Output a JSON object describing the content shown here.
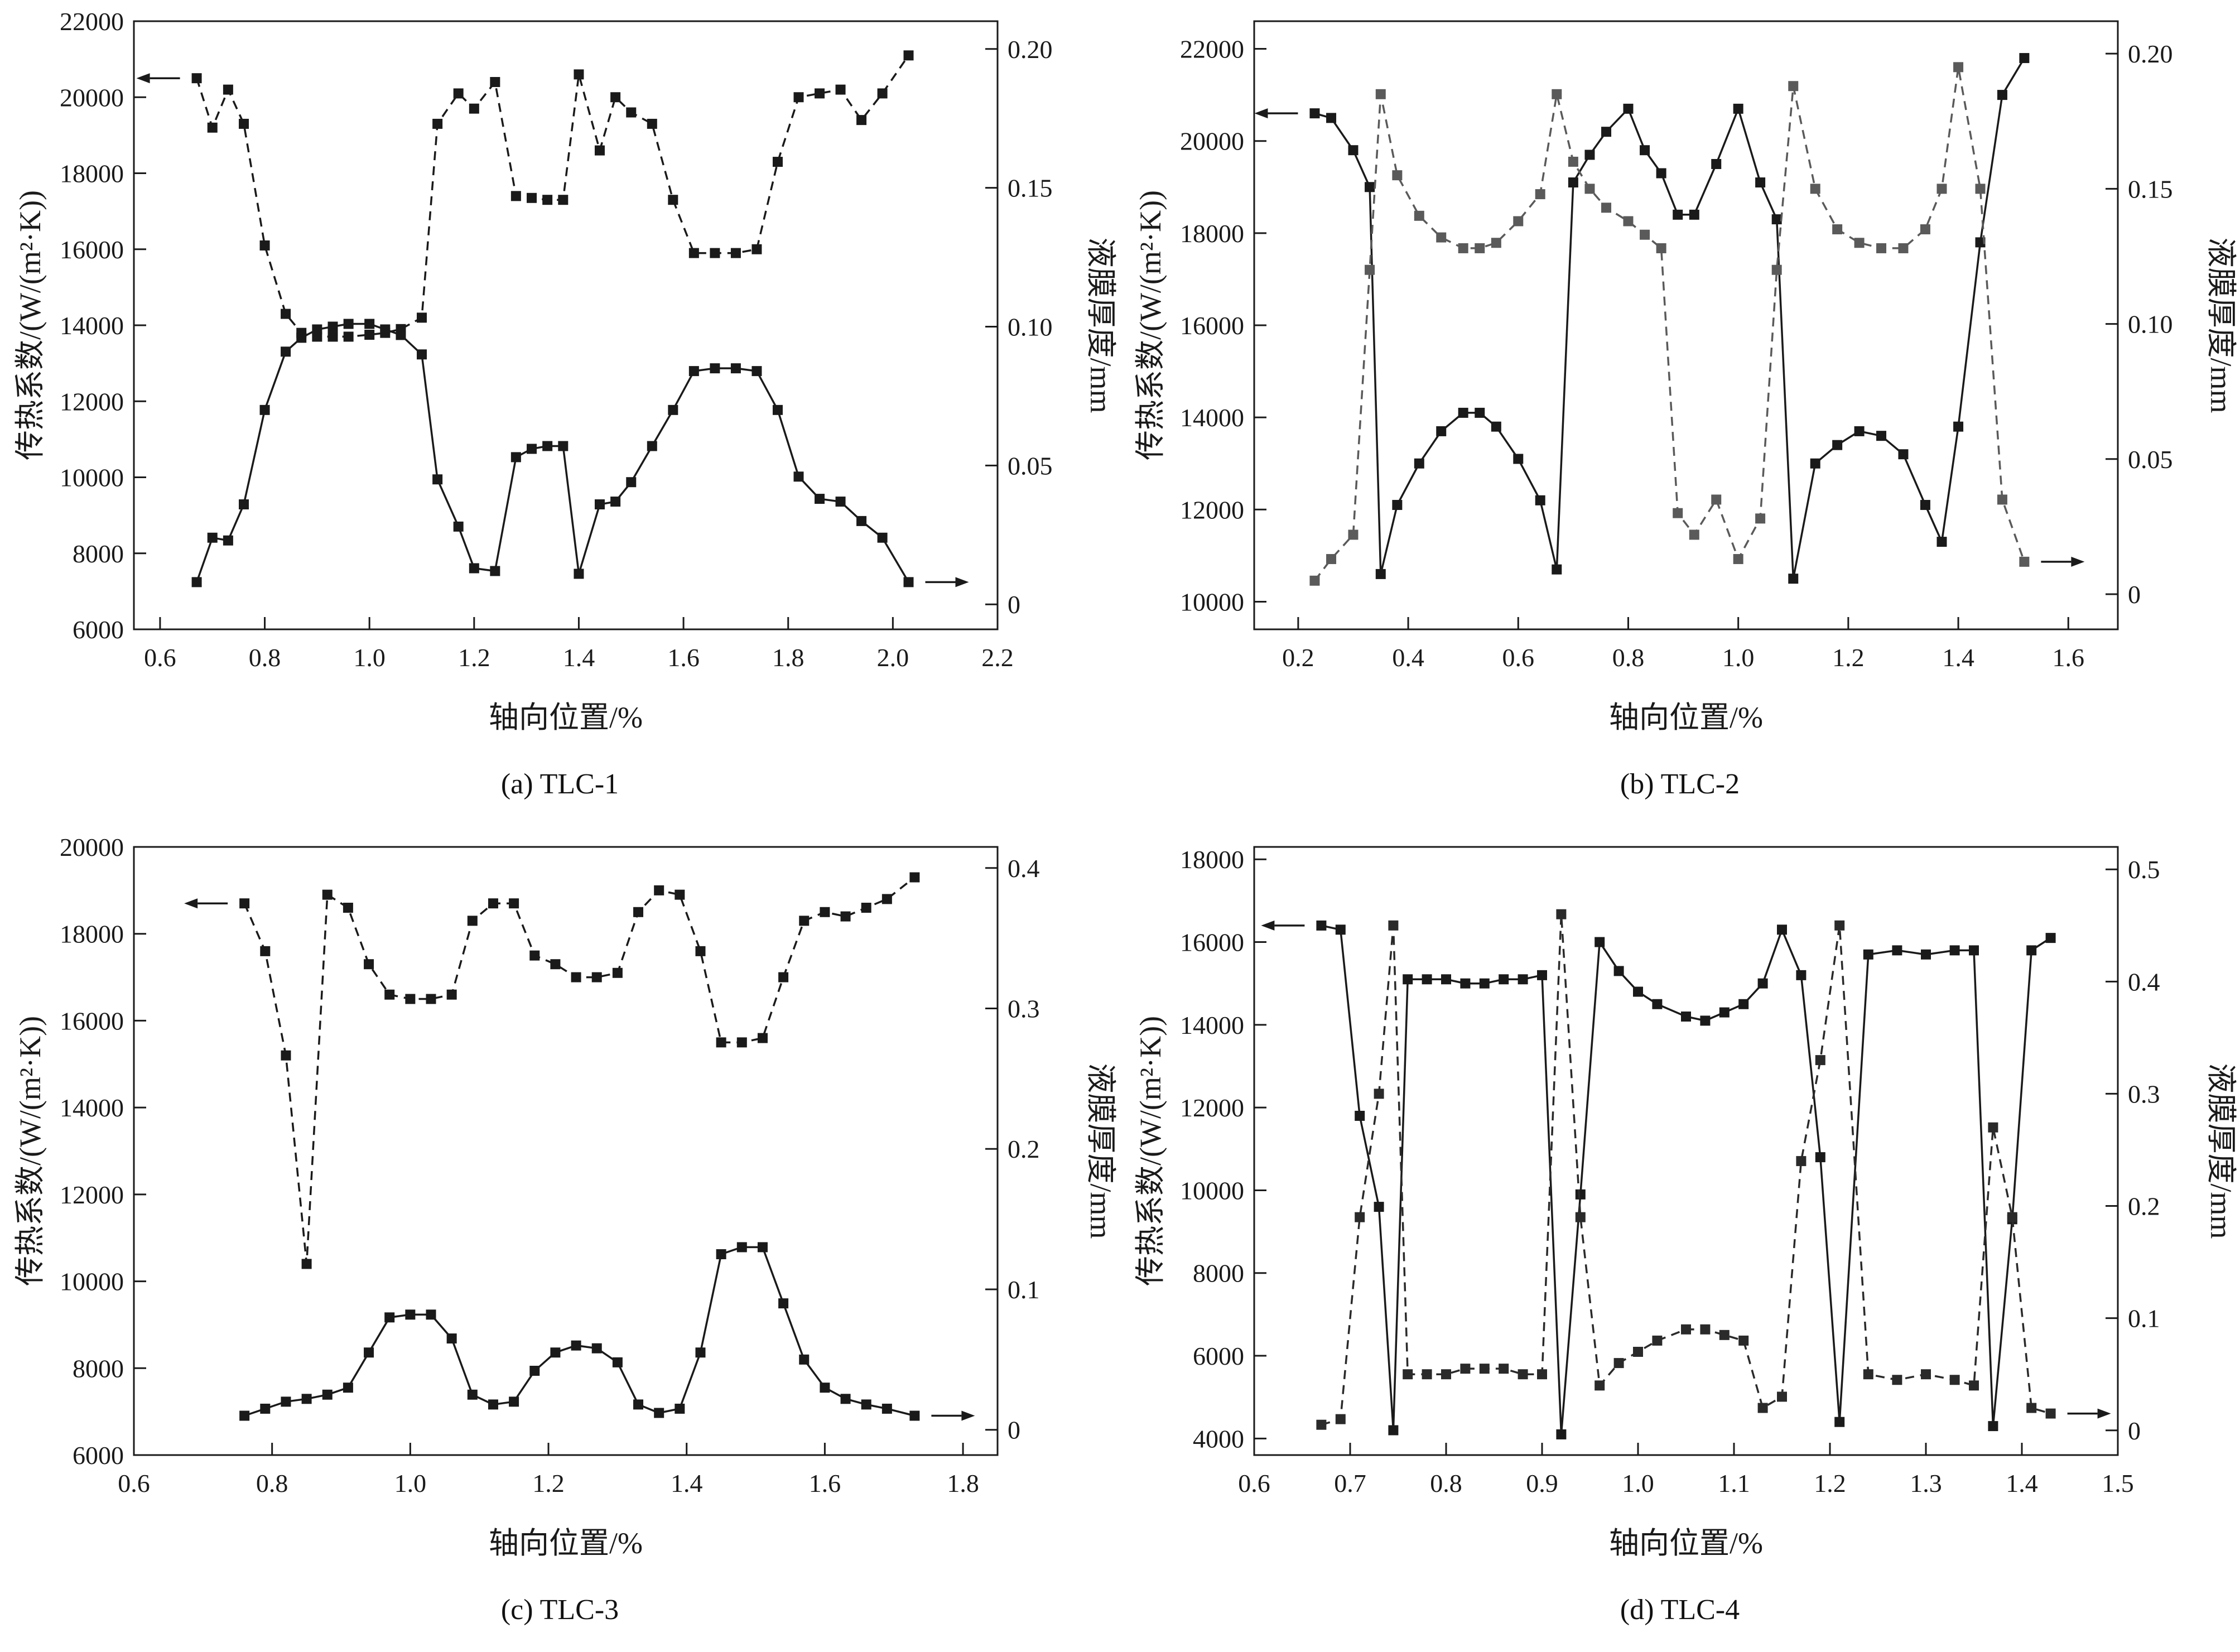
{
  "figure_title": "",
  "accent_color": "#1a1a1a",
  "film_gray_color": "#5a5a5a",
  "chart_data": [
    {
      "id": "a",
      "type": "line",
      "caption": "(a) TLC-1",
      "xlabel": "轴向位置/%",
      "ylabel_left": "传热系数/(W/(m²·K))",
      "ylabel_right": "液膜厚度/mm",
      "xlim": [
        0.55,
        2.2
      ],
      "xticks": [
        0.6,
        0.8,
        1.0,
        1.2,
        1.4,
        1.6,
        1.8,
        2.0,
        2.2
      ],
      "xtick_labels": [
        "0.6",
        "0.8",
        "1.0",
        "1.2",
        "1.4",
        "1.6",
        "1.8",
        "2.0",
        "2.2"
      ],
      "ylim_left": [
        6000,
        22000
      ],
      "yticks_left": [
        6000,
        8000,
        10000,
        12000,
        14000,
        16000,
        18000,
        20000,
        22000
      ],
      "ytick_labels_left": [
        "6000",
        "8000",
        "10000",
        "12000",
        "14000",
        "16000",
        "18000",
        "20000",
        "22000"
      ],
      "ylim_right": [
        -0.009,
        0.21
      ],
      "yticks_right": [
        0,
        0.05,
        0.1,
        0.15,
        0.2
      ],
      "ytick_labels_right": [
        "0",
        "0.05",
        "0.10",
        "0.15",
        "0.20"
      ],
      "x": [
        0.67,
        0.7,
        0.73,
        0.76,
        0.8,
        0.84,
        0.87,
        0.9,
        0.93,
        0.96,
        1.0,
        1.03,
        1.06,
        1.1,
        1.13,
        1.17,
        1.2,
        1.24,
        1.28,
        1.31,
        1.34,
        1.37,
        1.4,
        1.44,
        1.47,
        1.5,
        1.54,
        1.58,
        1.62,
        1.66,
        1.7,
        1.74,
        1.78,
        1.82,
        1.86,
        1.9,
        1.94,
        1.98,
        2.03
      ],
      "series": [
        {
          "key": "htc",
          "name": "传热系数",
          "axis": "left",
          "line": "dashed",
          "color": "#1a1a1a",
          "y": [
            20500,
            19200,
            20200,
            19300,
            16100,
            14300,
            13800,
            13700,
            13700,
            13700,
            13750,
            13800,
            13900,
            14200,
            19300,
            20100,
            19700,
            20400,
            17400,
            17350,
            17300,
            17300,
            20600,
            18600,
            20000,
            19600,
            19300,
            17300,
            15900,
            15900,
            15900,
            16000,
            18300,
            20000,
            20100,
            20200,
            19400,
            20100,
            21100
          ]
        },
        {
          "key": "film",
          "name": "液膜厚度",
          "axis": "right",
          "line": "solid",
          "color": "#1a1a1a",
          "y": [
            0.008,
            0.024,
            0.023,
            0.036,
            0.07,
            0.091,
            0.096,
            0.099,
            0.1,
            0.101,
            0.101,
            0.099,
            0.097,
            0.09,
            0.045,
            0.028,
            0.013,
            0.012,
            0.053,
            0.056,
            0.057,
            0.057,
            0.011,
            0.036,
            0.037,
            0.044,
            0.057,
            0.07,
            0.084,
            0.085,
            0.085,
            0.084,
            0.07,
            0.046,
            0.038,
            0.037,
            0.03,
            0.024,
            0.008
          ]
        }
      ],
      "arrows": [
        {
          "series": 0,
          "point": "first",
          "dir": "left"
        },
        {
          "series": 1,
          "point": "last",
          "dir": "right"
        }
      ]
    },
    {
      "id": "b",
      "type": "line",
      "caption": "(b) TLC-2",
      "xlabel": "轴向位置/%",
      "ylabel_left": "传热系数/(W/(m²·K))",
      "ylabel_right": "液膜厚度/mm",
      "xlim": [
        0.12,
        1.69
      ],
      "xticks": [
        0.2,
        0.4,
        0.6,
        0.8,
        1.0,
        1.2,
        1.4,
        1.6
      ],
      "xtick_labels": [
        "0.2",
        "0.4",
        "0.6",
        "0.8",
        "1.0",
        "1.2",
        "1.4",
        "1.6"
      ],
      "ylim_left": [
        9400,
        22600
      ],
      "yticks_left": [
        10000,
        12000,
        14000,
        16000,
        18000,
        20000,
        22000
      ],
      "ytick_labels_left": [
        "10000",
        "12000",
        "14000",
        "16000",
        "18000",
        "20000",
        "22000"
      ],
      "ylim_right": [
        -0.013,
        0.212
      ],
      "yticks_right": [
        0,
        0.05,
        0.1,
        0.15,
        0.2
      ],
      "ytick_labels_right": [
        "0",
        "0.05",
        "0.10",
        "0.15",
        "0.20"
      ],
      "x": [
        0.23,
        0.26,
        0.3,
        0.33,
        0.35,
        0.38,
        0.42,
        0.46,
        0.5,
        0.53,
        0.56,
        0.6,
        0.64,
        0.67,
        0.7,
        0.73,
        0.76,
        0.8,
        0.83,
        0.86,
        0.89,
        0.92,
        0.96,
        1.0,
        1.04,
        1.07,
        1.1,
        1.14,
        1.18,
        1.22,
        1.26,
        1.3,
        1.34,
        1.37,
        1.4,
        1.44,
        1.48,
        1.52
      ],
      "series": [
        {
          "key": "htc",
          "name": "传热系数",
          "axis": "left",
          "line": "solid",
          "color": "#1a1a1a",
          "y": [
            20600,
            20500,
            19800,
            19000,
            10600,
            12100,
            13000,
            13700,
            14100,
            14100,
            13800,
            13100,
            12200,
            10700,
            19100,
            19700,
            20200,
            20700,
            19800,
            19300,
            18400,
            18400,
            19500,
            20700,
            19100,
            18300,
            10500,
            13000,
            13400,
            13700,
            13600,
            13200,
            12100,
            11300,
            13800,
            17800,
            21000,
            21800
          ]
        },
        {
          "key": "film",
          "name": "液膜厚度",
          "axis": "right",
          "line": "dashed",
          "color": "#5a5a5a",
          "y": [
            0.005,
            0.013,
            0.022,
            0.12,
            0.185,
            0.155,
            0.14,
            0.132,
            0.128,
            0.128,
            0.13,
            0.138,
            0.148,
            0.185,
            0.16,
            0.15,
            0.143,
            0.138,
            0.133,
            0.128,
            0.03,
            0.022,
            0.035,
            0.013,
            0.028,
            0.12,
            0.188,
            0.15,
            0.135,
            0.13,
            0.128,
            0.128,
            0.135,
            0.15,
            0.195,
            0.15,
            0.035,
            0.012
          ]
        }
      ],
      "arrows": [
        {
          "series": 0,
          "point": "first",
          "dir": "left"
        },
        {
          "series": 1,
          "point": "last",
          "dir": "right"
        }
      ]
    },
    {
      "id": "c",
      "type": "line",
      "caption": "(c) TLC-3",
      "xlabel": "轴向位置/%",
      "ylabel_left": "传热系数/(W/(m²·K))",
      "ylabel_right": "液膜厚度/mm",
      "xlim": [
        0.6,
        1.85
      ],
      "xticks": [
        0.6,
        0.8,
        1.0,
        1.2,
        1.4,
        1.6,
        1.8
      ],
      "xtick_labels": [
        "0.6",
        "0.8",
        "1.0",
        "1.2",
        "1.4",
        "1.6",
        "1.8"
      ],
      "ylim_left": [
        6000,
        20000
      ],
      "yticks_left": [
        6000,
        8000,
        10000,
        12000,
        14000,
        16000,
        18000,
        20000
      ],
      "ytick_labels_left": [
        "6000",
        "8000",
        "10000",
        "12000",
        "14000",
        "16000",
        "18000",
        "20000"
      ],
      "ylim_right": [
        -0.018,
        0.415
      ],
      "yticks_right": [
        0,
        0.1,
        0.2,
        0.3,
        0.4
      ],
      "ytick_labels_right": [
        "0",
        "0.1",
        "0.2",
        "0.3",
        "0.4"
      ],
      "x": [
        0.76,
        0.79,
        0.82,
        0.85,
        0.88,
        0.91,
        0.94,
        0.97,
        1.0,
        1.03,
        1.06,
        1.09,
        1.12,
        1.15,
        1.18,
        1.21,
        1.24,
        1.27,
        1.3,
        1.33,
        1.36,
        1.39,
        1.42,
        1.45,
        1.48,
        1.51,
        1.54,
        1.57,
        1.6,
        1.63,
        1.66,
        1.69,
        1.73
      ],
      "series": [
        {
          "key": "htc",
          "name": "传热系数",
          "axis": "left",
          "line": "dashed",
          "color": "#1a1a1a",
          "y": [
            18700,
            17600,
            15200,
            10400,
            18900,
            18600,
            17300,
            16600,
            16500,
            16500,
            16600,
            18300,
            18700,
            18700,
            17500,
            17300,
            17000,
            17000,
            17100,
            18500,
            19000,
            18900,
            17600,
            15500,
            15500,
            15600,
            17000,
            18300,
            18500,
            18400,
            18600,
            18800,
            19300
          ]
        },
        {
          "key": "film",
          "name": "液膜厚度",
          "axis": "right",
          "line": "solid",
          "color": "#1a1a1a",
          "y": [
            0.01,
            0.015,
            0.02,
            0.022,
            0.025,
            0.03,
            0.055,
            0.08,
            0.082,
            0.082,
            0.065,
            0.025,
            0.018,
            0.02,
            0.042,
            0.055,
            0.06,
            0.058,
            0.048,
            0.018,
            0.012,
            0.015,
            0.055,
            0.125,
            0.13,
            0.13,
            0.09,
            0.05,
            0.03,
            0.022,
            0.018,
            0.015,
            0.01
          ]
        }
      ],
      "arrows": [
        {
          "series": 0,
          "point": "first",
          "dir": "left"
        },
        {
          "series": 1,
          "point": "last",
          "dir": "right"
        }
      ]
    },
    {
      "id": "d",
      "type": "line",
      "caption": "(d) TLC-4",
      "xlabel": "轴向位置/%",
      "ylabel_left": "传热系数/(W/(m²·K))",
      "ylabel_right": "液膜厚度/mm",
      "xlim": [
        0.6,
        1.5
      ],
      "xticks": [
        0.6,
        0.7,
        0.8,
        0.9,
        1.0,
        1.1,
        1.2,
        1.3,
        1.4,
        1.5
      ],
      "xtick_labels": [
        "0.6",
        "0.7",
        "0.8",
        "0.9",
        "1.0",
        "1.1",
        "1.2",
        "1.3",
        "1.4",
        "1.5"
      ],
      "ylim_left": [
        3600,
        18300
      ],
      "yticks_left": [
        4000,
        6000,
        8000,
        10000,
        12000,
        14000,
        16000,
        18000
      ],
      "ytick_labels_left": [
        "4000",
        "6000",
        "8000",
        "10000",
        "12000",
        "14000",
        "16000",
        "18000"
      ],
      "ylim_right": [
        -0.022,
        0.52
      ],
      "yticks_right": [
        0,
        0.1,
        0.2,
        0.3,
        0.4,
        0.5
      ],
      "ytick_labels_right": [
        "0",
        "0.1",
        "0.2",
        "0.3",
        "0.4",
        "0.5"
      ],
      "x": [
        0.67,
        0.69,
        0.71,
        0.73,
        0.745,
        0.76,
        0.78,
        0.8,
        0.82,
        0.84,
        0.86,
        0.88,
        0.9,
        0.92,
        0.94,
        0.96,
        0.98,
        1.0,
        1.02,
        1.05,
        1.07,
        1.09,
        1.11,
        1.13,
        1.15,
        1.17,
        1.19,
        1.21,
        1.24,
        1.27,
        1.3,
        1.33,
        1.35,
        1.37,
        1.39,
        1.41,
        1.43
      ],
      "series": [
        {
          "key": "htc",
          "name": "传热系数",
          "axis": "left",
          "line": "solid",
          "color": "#1a1a1a",
          "y": [
            16400,
            16300,
            11800,
            9600,
            4200,
            15100,
            15100,
            15100,
            15000,
            15000,
            15100,
            15100,
            15200,
            4100,
            9900,
            16000,
            15300,
            14800,
            14500,
            14200,
            14100,
            14300,
            14500,
            15000,
            16300,
            15200,
            10800,
            4400,
            15700,
            15800,
            15700,
            15800,
            15800,
            4300,
            9300,
            15800,
            16100
          ]
        },
        {
          "key": "film",
          "name": "液膜厚度",
          "axis": "right",
          "line": "dashed",
          "color": "#2a2a2a",
          "y": [
            0.005,
            0.01,
            0.19,
            0.3,
            0.45,
            0.05,
            0.05,
            0.05,
            0.055,
            0.055,
            0.055,
            0.05,
            0.05,
            0.46,
            0.19,
            0.04,
            0.06,
            0.07,
            0.08,
            0.09,
            0.09,
            0.085,
            0.08,
            0.02,
            0.03,
            0.24,
            0.33,
            0.45,
            0.05,
            0.045,
            0.05,
            0.045,
            0.04,
            0.27,
            0.19,
            0.02,
            0.015
          ]
        }
      ],
      "arrows": [
        {
          "series": 0,
          "point": "first",
          "dir": "left"
        },
        {
          "series": 1,
          "point": "last",
          "dir": "right"
        }
      ]
    }
  ]
}
